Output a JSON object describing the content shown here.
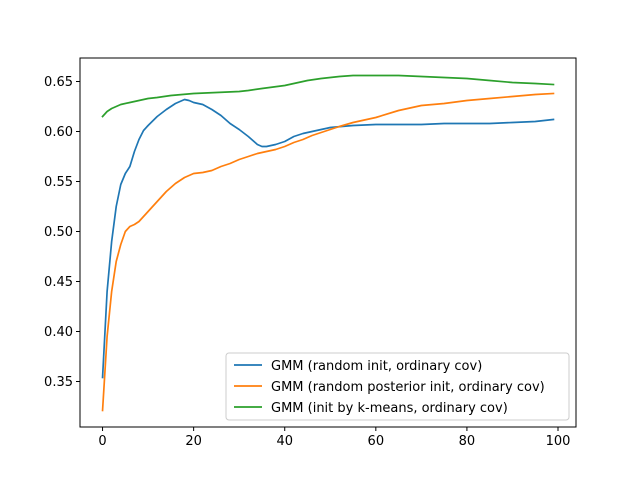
{
  "chart_data": {
    "type": "line",
    "title": "",
    "xlabel": "",
    "ylabel": "",
    "xlim": [
      -4.95,
      103.95
    ],
    "ylim": [
      0.3045,
      0.6735
    ],
    "xticks": [
      0,
      20,
      40,
      60,
      80,
      100
    ],
    "xtick_labels": [
      "0",
      "20",
      "40",
      "60",
      "80",
      "100"
    ],
    "yticks": [
      0.35,
      0.4,
      0.45,
      0.5,
      0.55,
      0.6,
      0.65
    ],
    "ytick_labels": [
      "0.35",
      "0.40",
      "0.45",
      "0.50",
      "0.55",
      "0.60",
      "0.65"
    ],
    "grid": false,
    "legend_position": "lower-right",
    "series": [
      {
        "name": "GMM (random init, ordinary cov)",
        "color": "#1f77b4",
        "x": [
          0,
          1,
          2,
          3,
          4,
          5,
          6,
          7,
          8,
          9,
          10,
          12,
          14,
          16,
          18,
          19,
          20,
          22,
          24,
          26,
          28,
          30,
          32,
          34,
          35,
          36,
          38,
          40,
          42,
          44,
          46,
          48,
          50,
          55,
          60,
          65,
          70,
          75,
          80,
          85,
          90,
          95,
          99
        ],
        "values": [
          0.354,
          0.44,
          0.49,
          0.525,
          0.547,
          0.558,
          0.565,
          0.58,
          0.592,
          0.601,
          0.606,
          0.615,
          0.622,
          0.628,
          0.632,
          0.631,
          0.629,
          0.627,
          0.622,
          0.616,
          0.608,
          0.602,
          0.595,
          0.587,
          0.585,
          0.585,
          0.587,
          0.59,
          0.595,
          0.598,
          0.6,
          0.602,
          0.604,
          0.606,
          0.607,
          0.607,
          0.607,
          0.608,
          0.608,
          0.608,
          0.609,
          0.61,
          0.612
        ]
      },
      {
        "name": "GMM (random posterior init, ordinary cov)",
        "color": "#ff7f0e",
        "x": [
          0,
          1,
          2,
          3,
          4,
          5,
          6,
          7,
          8,
          10,
          12,
          14,
          16,
          18,
          20,
          22,
          24,
          26,
          28,
          30,
          32,
          34,
          36,
          38,
          40,
          42,
          44,
          46,
          48,
          50,
          52,
          55,
          60,
          65,
          70,
          75,
          80,
          85,
          90,
          95,
          99
        ],
        "values": [
          0.321,
          0.395,
          0.44,
          0.47,
          0.487,
          0.5,
          0.505,
          0.507,
          0.51,
          0.52,
          0.53,
          0.54,
          0.548,
          0.554,
          0.558,
          0.559,
          0.561,
          0.565,
          0.568,
          0.572,
          0.575,
          0.578,
          0.58,
          0.582,
          0.585,
          0.589,
          0.592,
          0.596,
          0.599,
          0.602,
          0.605,
          0.609,
          0.614,
          0.621,
          0.626,
          0.628,
          0.631,
          0.633,
          0.635,
          0.637,
          0.638
        ]
      },
      {
        "name": "GMM (init by k-means, ordinary cov)",
        "color": "#2ca02c",
        "x": [
          0,
          1,
          2,
          4,
          6,
          8,
          10,
          12,
          15,
          20,
          25,
          30,
          32,
          35,
          40,
          42,
          45,
          48,
          50,
          52,
          55,
          60,
          65,
          70,
          75,
          80,
          85,
          90,
          95,
          99
        ],
        "values": [
          0.615,
          0.62,
          0.623,
          0.627,
          0.629,
          0.631,
          0.633,
          0.634,
          0.636,
          0.638,
          0.639,
          0.64,
          0.641,
          0.643,
          0.646,
          0.648,
          0.651,
          0.653,
          0.654,
          0.655,
          0.656,
          0.656,
          0.656,
          0.655,
          0.654,
          0.653,
          0.651,
          0.649,
          0.648,
          0.647
        ]
      }
    ]
  }
}
